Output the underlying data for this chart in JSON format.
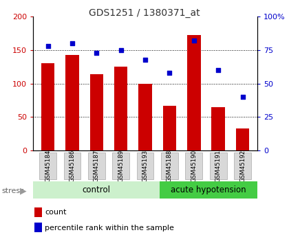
{
  "title": "GDS1251 / 1380371_at",
  "categories": [
    "GSM45184",
    "GSM45186",
    "GSM45187",
    "GSM45189",
    "GSM45193",
    "GSM45188",
    "GSM45190",
    "GSM45191",
    "GSM45192"
  ],
  "count_values": [
    130,
    143,
    114,
    125,
    100,
    67,
    172,
    65,
    33
  ],
  "percentile_values": [
    78,
    80,
    73,
    75,
    68,
    58,
    82,
    60,
    40
  ],
  "bar_color": "#cc0000",
  "dot_color": "#0000cc",
  "ylim_left": [
    0,
    200
  ],
  "ylim_right": [
    0,
    100
  ],
  "yticks_left": [
    0,
    50,
    100,
    150,
    200
  ],
  "yticks_right": [
    0,
    25,
    50,
    75,
    100
  ],
  "ytick_labels_left": [
    "0",
    "50",
    "100",
    "150",
    "200"
  ],
  "ytick_labels_right": [
    "0",
    "25",
    "50",
    "75",
    "100%"
  ],
  "grid_values": [
    50,
    100,
    150
  ],
  "n_control": 5,
  "n_stress": 4,
  "control_label": "control",
  "stress_label": "acute hypotension",
  "group_label": "stress",
  "legend_count": "count",
  "legend_percentile": "percentile rank within the sample",
  "control_bg": "#ccf0cc",
  "stress_bg": "#44cc44",
  "xticklabel_bg": "#d8d8d8",
  "xticklabel_edgecolor": "#aaaaaa"
}
